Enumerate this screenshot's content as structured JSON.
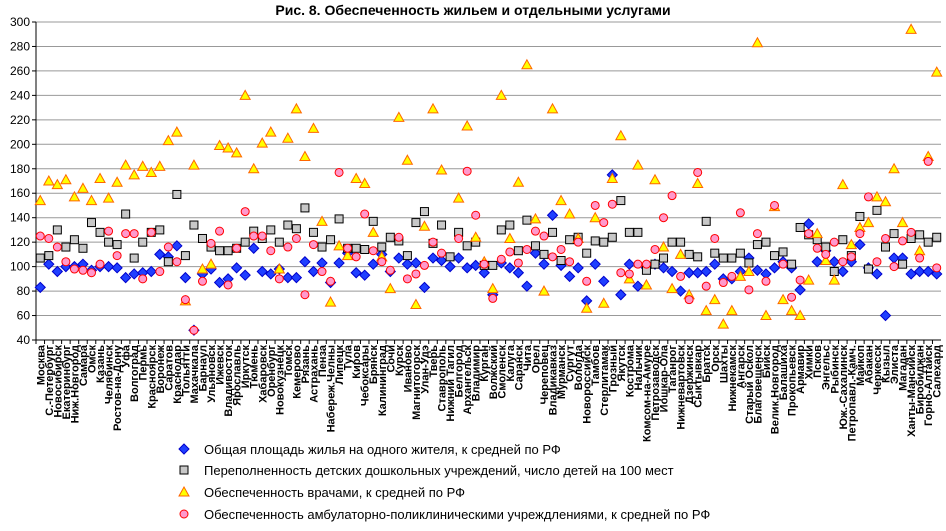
{
  "chart_data": {
    "type": "scatter",
    "title": "Рис. 8. Обеспеченность жильем и отдельными услугами",
    "xlabel": "",
    "ylabel": "",
    "ylim": [
      40,
      300
    ],
    "yticks": [
      40,
      60,
      80,
      100,
      120,
      140,
      160,
      180,
      200,
      220,
      240,
      260,
      280,
      300
    ],
    "grid": true,
    "legend_position": "bottom",
    "categories": [
      "Москва",
      "С.-Петербург",
      "Новосибирск",
      "Екатеринбург",
      "Ниж.Новгород",
      "Самара",
      "Омск",
      "Казань",
      "Челябинск",
      "Ростов-на-Дону",
      "Уфа",
      "Волгоград",
      "Пермь",
      "Красноярск",
      "Воронеж",
      "Саратов",
      "Краснодар",
      "Тольятти",
      "Махачкала",
      "Барнаул",
      "Ульяновск",
      "Ижевск",
      "Владивосток",
      "Ярославль",
      "Иркутск",
      "Тюмень",
      "Хабаровск",
      "Оренбург",
      "Новокузнецк",
      "Томск",
      "Кемерово",
      "Рязань",
      "Астрахань",
      "Пенза",
      "Набереж.Челны",
      "Липецк",
      "Тула",
      "Киров",
      "Чебоксары",
      "Брянск",
      "Калининград",
      "Сочи",
      "Курск",
      "Иваново",
      "Магнитогорск",
      "Улан-Удэ",
      "Тверь",
      "Ставрополь",
      "Нижний Тагил",
      "Белгород",
      "Архангельск",
      "Владимир",
      "Курган",
      "Волжский",
      "Смоленск",
      "Калуга",
      "Саранск",
      "Чита",
      "Орел",
      "Череповец",
      "Владикавказ",
      "Мурманск",
      "Сургут",
      "Вологда",
      "Новороссийск",
      "Тамбов",
      "Стерлитамак",
      "Грозный",
      "Якутск",
      "Кострома",
      "Нальчик",
      "Комсом-на-Амуре",
      "Петрозаводск",
      "Йошкар-Ола",
      "Таганрог",
      "Нижневартовск",
      "Дзержинск",
      "Сыктывкар",
      "Братск",
      "Орск",
      "Шахты",
      "Нижнекамск",
      "Ангарск",
      "Старый Оскол",
      "Благовещенск",
      "Бийск",
      "Велик.Новгород",
      "Балашиха",
      "Прокопьевск",
      "Армавир",
      "Химки",
      "Псков",
      "Энгельс",
      "Рыбинск",
      "Юж.-Сахалинск",
      "Петропавл.-Камч.",
      "Майкоп",
      "Абакан",
      "Черкесск",
      "Кызыл",
      "Элиста",
      "Магадан",
      "Ханты-Мансийск",
      "Биробиджан",
      "Горно-Алтайск",
      "Салехард"
    ],
    "series": [
      {
        "name": "Общая площадь жилья на одного жителя, к средней по РФ",
        "marker": "diamond",
        "color": "#1f3fff",
        "edge": "#0000cc",
        "values": [
          83,
          102,
          96,
          100,
          100,
          102,
          97,
          100,
          100,
          99,
          91,
          94,
          95,
          96,
          110,
          108,
          117,
          91,
          48,
          94,
          98,
          87,
          90,
          99,
          93,
          115,
          96,
          94,
          98,
          91,
          91,
          104,
          96,
          103,
          87,
          103,
          111,
          95,
          93,
          102,
          110,
          96,
          107,
          102,
          103,
          83,
          107,
          105,
          100,
          107,
          99,
          101,
          95,
          77,
          103,
          99,
          95,
          84,
          111,
          102,
          142,
          101,
          92,
          99,
          72,
          102,
          88,
          175,
          77,
          102,
          84,
          99,
          102,
          99,
          96,
          80,
          95,
          95,
          96,
          102,
          90,
          90,
          96,
          107,
          97,
          94,
          99,
          104,
          99,
          81,
          135,
          104,
          113,
          104,
          96,
          104,
          118,
          99,
          94,
          60,
          107,
          107,
          94,
          96,
          96,
          94
        ]
      },
      {
        "name": "Переполненность  детских дошкольных учреждений, число детей на 100 мест",
        "marker": "square",
        "color": "#c8c8c8",
        "edge": "#000000",
        "values": [
          107,
          109,
          130,
          116,
          122,
          115,
          136,
          128,
          120,
          118,
          143,
          107,
          120,
          128,
          130,
          104,
          159,
          109,
          134,
          123,
          116,
          113,
          113,
          115,
          120,
          129,
          123,
          130,
          120,
          134,
          131,
          148,
          128,
          116,
          122,
          139,
          115,
          115,
          114,
          137,
          116,
          124,
          121,
          109,
          136,
          145,
          119,
          134,
          108,
          128,
          117,
          120,
          101,
          101,
          130,
          134,
          113,
          138,
          117,
          110,
          128,
          105,
          122,
          124,
          111,
          121,
          120,
          124,
          154,
          128,
          128,
          97,
          102,
          107,
          120,
          120,
          110,
          108,
          137,
          111,
          107,
          107,
          111,
          103,
          118,
          120,
          109,
          112,
          102,
          132,
          126,
          122,
          116,
          96,
          122,
          109,
          141,
          98,
          146,
          116,
          127,
          102,
          123,
          126,
          120,
          124
        ]
      },
      {
        "name": "Обеспеченность врачами, к средней по РФ",
        "marker": "triangle",
        "color": "#ffff00",
        "edge": "#ff6600",
        "values": [
          154,
          170,
          167,
          171,
          157,
          164,
          154,
          172,
          156,
          169,
          183,
          175,
          182,
          177,
          182,
          203,
          210,
          72,
          183,
          98,
          102,
          199,
          197,
          193,
          240,
          180,
          201,
          210,
          98,
          205,
          229,
          190,
          213,
          137,
          71,
          117,
          109,
          172,
          168,
          128,
          108,
          82,
          222,
          187,
          69,
          133,
          229,
          179,
          null,
          156,
          215,
          124,
          104,
          82,
          240,
          123,
          169,
          265,
          139,
          80,
          229,
          154,
          143,
          123,
          66,
          140,
          70,
          172,
          207,
          90,
          183,
          85,
          171,
          116,
          82,
          110,
          77,
          168,
          64,
          73,
          53,
          64,
          92,
          96,
          283,
          60,
          149,
          73,
          64,
          60,
          89,
          127,
          105,
          89,
          167,
          118,
          132,
          136,
          157,
          153,
          180,
          136,
          294,
          113,
          190,
          259
        ]
      },
      {
        "name": "Обеспеченность амбулаторно-поликлиническими учреждлениями, к средней по РФ",
        "marker": "circle",
        "color": "#ff99cc",
        "edge": "#ff0000",
        "values": [
          125,
          123,
          116,
          104,
          98,
          97,
          95,
          102,
          129,
          109,
          127,
          127,
          90,
          128,
          96,
          116,
          104,
          73,
          48,
          88,
          119,
          129,
          85,
          115,
          145,
          125,
          125,
          113,
          90,
          116,
          123,
          77,
          118,
          96,
          88,
          177,
          115,
          108,
          143,
          113,
          104,
          97,
          124,
          90,
          94,
          101,
          120,
          111,
          null,
          123,
          178,
          142,
          102,
          74,
          106,
          112,
          103,
          114,
          129,
          125,
          108,
          114,
          104,
          120,
          88,
          150,
          136,
          151,
          95,
          94,
          102,
          102,
          114,
          140,
          158,
          92,
          73,
          177,
          84,
          123,
          87,
          92,
          144,
          81,
          127,
          88,
          150,
          102,
          75,
          89,
          127,
          115,
          110,
          120,
          104,
          108,
          127,
          157,
          104,
          123,
          100,
          121,
          128,
          107,
          186,
          99
        ]
      }
    ]
  }
}
